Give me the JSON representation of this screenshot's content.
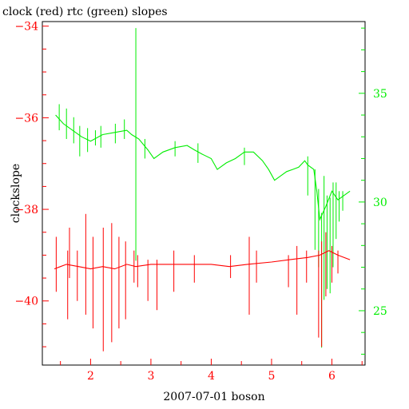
{
  "chart_data": {
    "type": "line",
    "title": "clock (red) rtc (green) slopes",
    "xlabel": "2007-07-01 boson",
    "ylabel": "clockslope",
    "xlim": [
      1.2,
      6.55
    ],
    "ylim_left": [
      -41.4,
      -33.9
    ],
    "ylim_right": [
      22.5,
      38.3
    ],
    "x_ticks": [
      {
        "v": 2,
        "label": "2"
      },
      {
        "v": 3,
        "label": "3"
      },
      {
        "v": 4,
        "label": "4"
      },
      {
        "v": 5,
        "label": "5"
      },
      {
        "v": 6,
        "label": "6"
      }
    ],
    "y_left_ticks": [
      {
        "v": -34,
        "label": "−34"
      },
      {
        "v": -36,
        "label": "−36"
      },
      {
        "v": -38,
        "label": "−38"
      },
      {
        "v": -40,
        "label": "−40"
      }
    ],
    "y_right_ticks": [
      {
        "v": 25,
        "label": "25"
      },
      {
        "v": 30,
        "label": "30"
      },
      {
        "v": 35,
        "label": "35"
      }
    ],
    "series": [
      {
        "name": "clock",
        "color": "#ff0000",
        "axis": "left",
        "x": [
          1.4,
          1.5,
          1.6,
          1.8,
          2.0,
          2.2,
          2.4,
          2.6,
          2.75,
          3.0,
          3.3,
          3.6,
          4.0,
          4.3,
          4.6,
          5.0,
          5.3,
          5.6,
          5.8,
          5.95,
          6.1,
          6.3
        ],
        "y": [
          -39.3,
          -39.25,
          -39.2,
          -39.25,
          -39.3,
          -39.25,
          -39.3,
          -39.2,
          -39.25,
          -39.2,
          -39.2,
          -39.2,
          -39.2,
          -39.25,
          -39.2,
          -39.15,
          -39.1,
          -39.05,
          -39.0,
          -38.9,
          -39.0,
          -39.1
        ],
        "spikes": [
          {
            "x": 1.43,
            "lo": -39.8,
            "hi": -38.6
          },
          {
            "x": 1.62,
            "lo": -40.4,
            "hi": -38.9
          },
          {
            "x": 1.65,
            "lo": -39.5,
            "hi": -38.4
          },
          {
            "x": 1.78,
            "lo": -40.0,
            "hi": -38.9
          },
          {
            "x": 1.92,
            "lo": -40.3,
            "hi": -38.1
          },
          {
            "x": 2.04,
            "lo": -40.6,
            "hi": -38.6
          },
          {
            "x": 2.21,
            "lo": -41.1,
            "hi": -38.4
          },
          {
            "x": 2.35,
            "lo": -40.9,
            "hi": -38.3
          },
          {
            "x": 2.47,
            "lo": -40.6,
            "hi": -38.6
          },
          {
            "x": 2.58,
            "lo": -40.4,
            "hi": -38.7
          },
          {
            "x": 2.72,
            "lo": -39.6,
            "hi": -38.9
          },
          {
            "x": 2.78,
            "lo": -39.7,
            "hi": -39.0
          },
          {
            "x": 2.95,
            "lo": -40.0,
            "hi": -39.1
          },
          {
            "x": 3.1,
            "lo": -40.2,
            "hi": -39.1
          },
          {
            "x": 3.38,
            "lo": -39.8,
            "hi": -38.9
          },
          {
            "x": 3.72,
            "lo": -39.6,
            "hi": -39.0
          },
          {
            "x": 4.32,
            "lo": -39.5,
            "hi": -39.0
          },
          {
            "x": 4.63,
            "lo": -40.3,
            "hi": -38.6
          },
          {
            "x": 4.75,
            "lo": -39.6,
            "hi": -38.9
          },
          {
            "x": 5.28,
            "lo": -39.7,
            "hi": -39.0
          },
          {
            "x": 5.42,
            "lo": -40.3,
            "hi": -38.8
          },
          {
            "x": 5.58,
            "lo": -39.6,
            "hi": -38.9
          },
          {
            "x": 5.78,
            "lo": -40.8,
            "hi": -38.9
          },
          {
            "x": 5.83,
            "lo": -41.0,
            "hi": -38.7
          },
          {
            "x": 5.9,
            "lo": -39.9,
            "hi": -38.5
          },
          {
            "x": 6.0,
            "lo": -39.6,
            "hi": -38.8
          },
          {
            "x": 6.1,
            "lo": -39.4,
            "hi": -38.9
          }
        ]
      },
      {
        "name": "rtc",
        "color": "#00ee00",
        "axis": "right",
        "x": [
          1.42,
          1.55,
          1.7,
          1.85,
          2.0,
          2.2,
          2.4,
          2.6,
          2.68,
          2.8,
          2.95,
          3.05,
          3.2,
          3.4,
          3.6,
          3.72,
          3.85,
          4.0,
          4.1,
          4.25,
          4.4,
          4.55,
          4.7,
          4.85,
          4.95,
          5.05,
          5.15,
          5.25,
          5.35,
          5.45,
          5.55,
          5.6,
          5.7,
          5.75,
          5.8,
          5.9,
          6.0,
          6.1,
          6.2,
          6.3
        ],
        "y": [
          34.0,
          33.6,
          33.3,
          33.0,
          32.8,
          33.1,
          33.2,
          33.3,
          33.1,
          32.9,
          32.4,
          32.0,
          32.3,
          32.5,
          32.6,
          32.4,
          32.2,
          32.0,
          31.5,
          31.8,
          32.0,
          32.3,
          32.3,
          31.9,
          31.5,
          31.0,
          31.2,
          31.4,
          31.5,
          31.6,
          31.9,
          31.7,
          31.5,
          30.5,
          29.2,
          29.8,
          30.5,
          30.1,
          30.3,
          30.5
        ],
        "spikes": [
          {
            "x": 1.48,
            "lo": 33.3,
            "hi": 34.5
          },
          {
            "x": 1.6,
            "lo": 32.9,
            "hi": 34.3
          },
          {
            "x": 1.72,
            "lo": 32.7,
            "hi": 33.9
          },
          {
            "x": 1.82,
            "lo": 32.1,
            "hi": 33.5
          },
          {
            "x": 1.95,
            "lo": 32.3,
            "hi": 33.4
          },
          {
            "x": 2.08,
            "lo": 32.6,
            "hi": 33.3
          },
          {
            "x": 2.17,
            "lo": 32.5,
            "hi": 33.5
          },
          {
            "x": 2.41,
            "lo": 32.7,
            "hi": 33.6
          },
          {
            "x": 2.56,
            "lo": 32.9,
            "hi": 33.8
          },
          {
            "x": 2.75,
            "lo": 27.3,
            "hi": 38.0
          },
          {
            "x": 2.9,
            "lo": 32.0,
            "hi": 32.9
          },
          {
            "x": 3.4,
            "lo": 32.1,
            "hi": 32.8
          },
          {
            "x": 3.78,
            "lo": 31.8,
            "hi": 32.7
          },
          {
            "x": 4.55,
            "lo": 31.7,
            "hi": 32.5
          },
          {
            "x": 5.6,
            "lo": 30.3,
            "hi": 32.1
          },
          {
            "x": 5.72,
            "lo": 27.8,
            "hi": 31.5
          },
          {
            "x": 5.78,
            "lo": 27.0,
            "hi": 30.6
          },
          {
            "x": 5.83,
            "lo": 23.3,
            "hi": 29.5
          },
          {
            "x": 5.87,
            "lo": 25.5,
            "hi": 31.2
          },
          {
            "x": 5.92,
            "lo": 26.0,
            "hi": 30.3
          },
          {
            "x": 5.97,
            "lo": 25.8,
            "hi": 30.2
          },
          {
            "x": 6.02,
            "lo": 27.0,
            "hi": 30.9
          },
          {
            "x": 6.07,
            "lo": 28.3,
            "hi": 30.9
          },
          {
            "x": 6.12,
            "lo": 29.1,
            "hi": 30.5
          },
          {
            "x": 6.18,
            "lo": 29.6,
            "hi": 30.5
          }
        ]
      }
    ]
  }
}
